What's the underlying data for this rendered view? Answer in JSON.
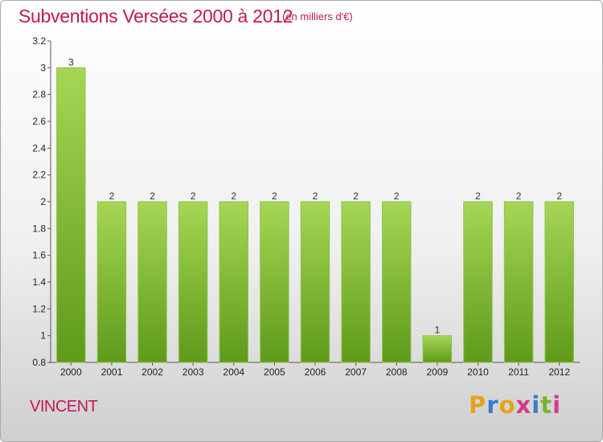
{
  "header": {
    "title": "Subventions Versées 2000 à 2012",
    "unit": "(en milliers d'€)"
  },
  "footer": {
    "commune": "VINCENT",
    "logo_letters": [
      "P",
      "r",
      "o",
      "x",
      "i",
      "t",
      "i"
    ],
    "logo_colors": [
      "#e8a317",
      "#3a7dc9",
      "#e8a317",
      "#d63a8a",
      "#3a7dc9",
      "#7ab32e",
      "#d63a8a"
    ]
  },
  "colors": {
    "title": "#c0185a",
    "bar_top": "#a6d655",
    "bar_bottom": "#5f9a1a"
  },
  "chart_data": {
    "type": "bar",
    "title": "Subventions Versées 2000 à 2012",
    "xlabel": "",
    "ylabel": "",
    "categories": [
      "2000",
      "2001",
      "2002",
      "2003",
      "2004",
      "2005",
      "2006",
      "2007",
      "2008",
      "2009",
      "2010",
      "2011",
      "2012"
    ],
    "values": [
      3,
      2,
      2,
      2,
      2,
      2,
      2,
      2,
      2,
      1,
      2,
      2,
      2
    ],
    "data_labels": [
      "3",
      "2",
      "2",
      "2",
      "2",
      "2",
      "2",
      "2",
      "2",
      "1",
      "2",
      "2",
      "2"
    ],
    "ylim": [
      0.8,
      3.2
    ],
    "yticks": [
      0.8,
      1,
      1.2,
      1.4,
      1.6,
      1.8,
      2,
      2.2,
      2.4,
      2.6,
      2.8,
      3,
      3.2
    ],
    "ytick_labels": [
      "0.8",
      "1",
      "1.2",
      "1.4",
      "1.6",
      "1.8",
      "2",
      "2.2",
      "2.4",
      "2.6",
      "2.8",
      "3",
      "3.2"
    ],
    "grid": false,
    "legend": "none"
  }
}
